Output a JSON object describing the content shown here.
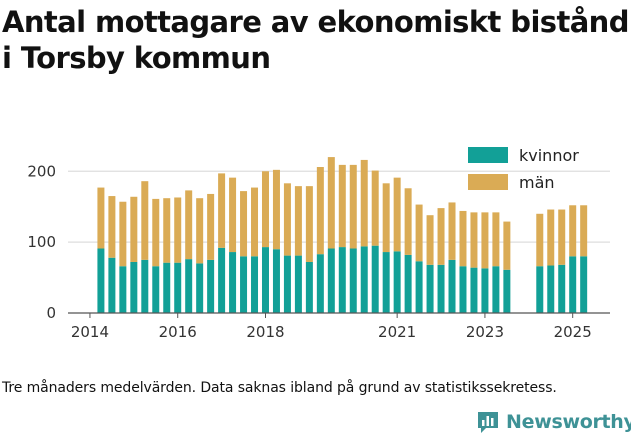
{
  "title": "Antal mottagare av ekonomiskt bistånd i Torsby kommun",
  "footnote": "Tre månaders medelvärden. Data saknas ibland på grund av statistikssekretess.",
  "brand": {
    "name": "Newsworthy",
    "color": "#3e9296",
    "icon": "bar-chart-logo-icon"
  },
  "chart_data": {
    "type": "bar",
    "stacked": true,
    "title": "Antal mottagare av ekonomiskt bistånd i Torsby kommun",
    "xlabel": "",
    "ylabel": "",
    "ylim": [
      0,
      230
    ],
    "yticks": [
      0,
      100,
      200
    ],
    "x_range": [
      2013.5,
      2025.85
    ],
    "xticks": [
      2014,
      2016,
      2018,
      2021,
      2023,
      2025
    ],
    "grid": {
      "horizontal": true,
      "vertical": false
    },
    "legend": {
      "position": "top-right"
    },
    "x": [
      2014.25,
      2014.5,
      2014.75,
      2015.0,
      2015.25,
      2015.5,
      2015.75,
      2016.0,
      2016.25,
      2016.5,
      2016.75,
      2017.0,
      2017.25,
      2017.5,
      2017.75,
      2018.0,
      2018.25,
      2018.5,
      2018.75,
      2019.0,
      2019.25,
      2019.5,
      2019.75,
      2020.0,
      2020.25,
      2020.5,
      2020.75,
      2021.0,
      2021.25,
      2021.5,
      2021.75,
      2022.0,
      2022.25,
      2022.5,
      2022.75,
      2023.0,
      2023.25,
      2023.5,
      2024.25,
      2024.5,
      2024.75,
      2025.0,
      2025.25
    ],
    "series": [
      {
        "name": "kvinnor",
        "color": "#12a097",
        "values": [
          91,
          78,
          66,
          72,
          75,
          66,
          71,
          71,
          76,
          70,
          75,
          92,
          86,
          80,
          80,
          93,
          90,
          81,
          81,
          72,
          83,
          91,
          93,
          91,
          94,
          95,
          86,
          87,
          82,
          73,
          68,
          68,
          75,
          66,
          64,
          63,
          66,
          61,
          66,
          67,
          68,
          80,
          80
        ]
      },
      {
        "name": "män",
        "color": "#daab55",
        "values": [
          86,
          87,
          91,
          92,
          111,
          95,
          91,
          92,
          97,
          92,
          93,
          105,
          105,
          92,
          97,
          107,
          112,
          102,
          98,
          107,
          123,
          129,
          116,
          118,
          122,
          106,
          97,
          104,
          94,
          80,
          70,
          80,
          81,
          78,
          78,
          79,
          76,
          68,
          74,
          79,
          78,
          72,
          72
        ]
      }
    ]
  }
}
